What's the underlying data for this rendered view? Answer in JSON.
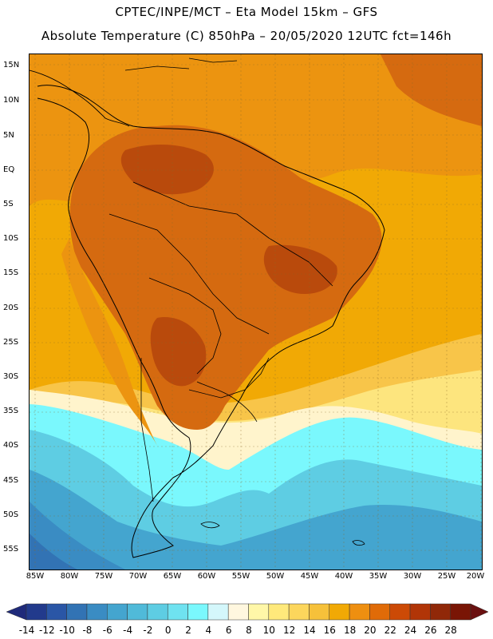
{
  "title_line1": "CPTEC/INPE/MCT  –   Eta Model 15km – GFS",
  "title_line2": "Absolute Temperature (C) 850hPa – 20/05/2020 12UTC fct=146h",
  "latitude_labels": [
    "15N",
    "10N",
    "5N",
    "EQ",
    "5S",
    "10S",
    "15S",
    "20S",
    "25S",
    "30S",
    "35S",
    "40S",
    "45S",
    "50S",
    "55S"
  ],
  "longitude_labels": [
    "85W",
    "80W",
    "75W",
    "70W",
    "65W",
    "60W",
    "55W",
    "50W",
    "45W",
    "40W",
    "35W",
    "30W",
    "25W",
    "20W"
  ],
  "colorbar": {
    "labels": [
      "-14",
      "-12",
      "-10",
      "-8",
      "-6",
      "-4",
      "-2",
      "0",
      "2",
      "4",
      "6",
      "8",
      "10",
      "12",
      "14",
      "16",
      "18",
      "20",
      "22",
      "24",
      "26",
      "28"
    ],
    "colors": [
      "#223a8c",
      "#2a56a6",
      "#3273b4",
      "#3a8cc3",
      "#44a5cf",
      "#50bad9",
      "#5ecde3",
      "#6fe2f0",
      "#7af8fd",
      "#d4f7fb",
      "#fff7df",
      "#fff7a8",
      "#ffe97b",
      "#fcd65c",
      "#f6c13a",
      "#f1a905",
      "#ee8f10",
      "#e06b08",
      "#cc4a06",
      "#b13507",
      "#902808",
      "#791505"
    ],
    "min_color": "#1f2a7a",
    "max_color": "#6a1010"
  },
  "temperature_bands": {
    "very_hot": "#b94a0c",
    "hot": "#d56a10",
    "warm": "#ec9410",
    "mild": "#f3ad22",
    "yellow": "#fbd35a",
    "cream": "#fff4cc",
    "cyan": "#6ff0f8",
    "light_blue": "#66d4ea",
    "mid_blue": "#4ab0d8",
    "deep_blue": "#3b8cc4"
  },
  "contour_color": "#000000",
  "graticule_color": "#8a6a2a"
}
